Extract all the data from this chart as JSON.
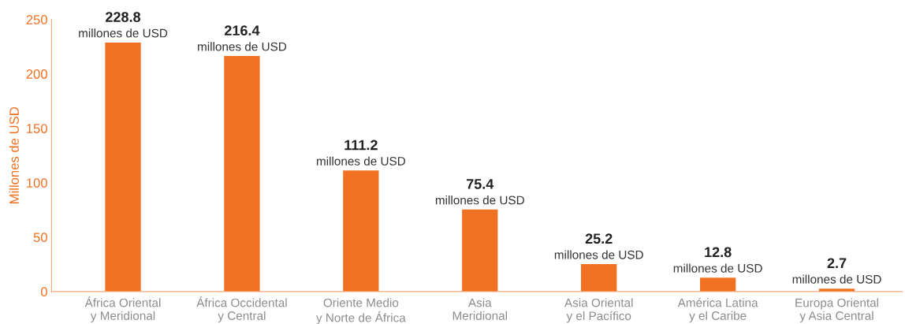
{
  "chart_data": {
    "type": "bar",
    "ylabel": "Millones de USD",
    "categories": [
      "África Oriental\ny Meridional",
      "África Occidental\ny Central",
      "Oriente Medio\ny Norte de África",
      "Asia\nMeridional",
      "Asia Oriental\ny el Pacífico",
      "América Latina\ny el Caribe",
      "Europa Oriental\ny Asia Central"
    ],
    "values": [
      228.8,
      216.4,
      111.2,
      75.4,
      25.2,
      12.8,
      2.7
    ],
    "value_labels": [
      "228.8\nmillones de USD",
      "216.4\nmillones de USD",
      "111.2\nmillones de USD",
      "75.4\nmillones de USD",
      "25.2\nmillones de USD",
      "12.8\nmillones de USD",
      "2.7\nmillones de USD"
    ],
    "color": "#f07122",
    "ylim": [
      0,
      250
    ],
    "yticks": [
      0,
      50,
      100,
      150,
      200,
      250
    ],
    "grid": false,
    "legend": false
  }
}
